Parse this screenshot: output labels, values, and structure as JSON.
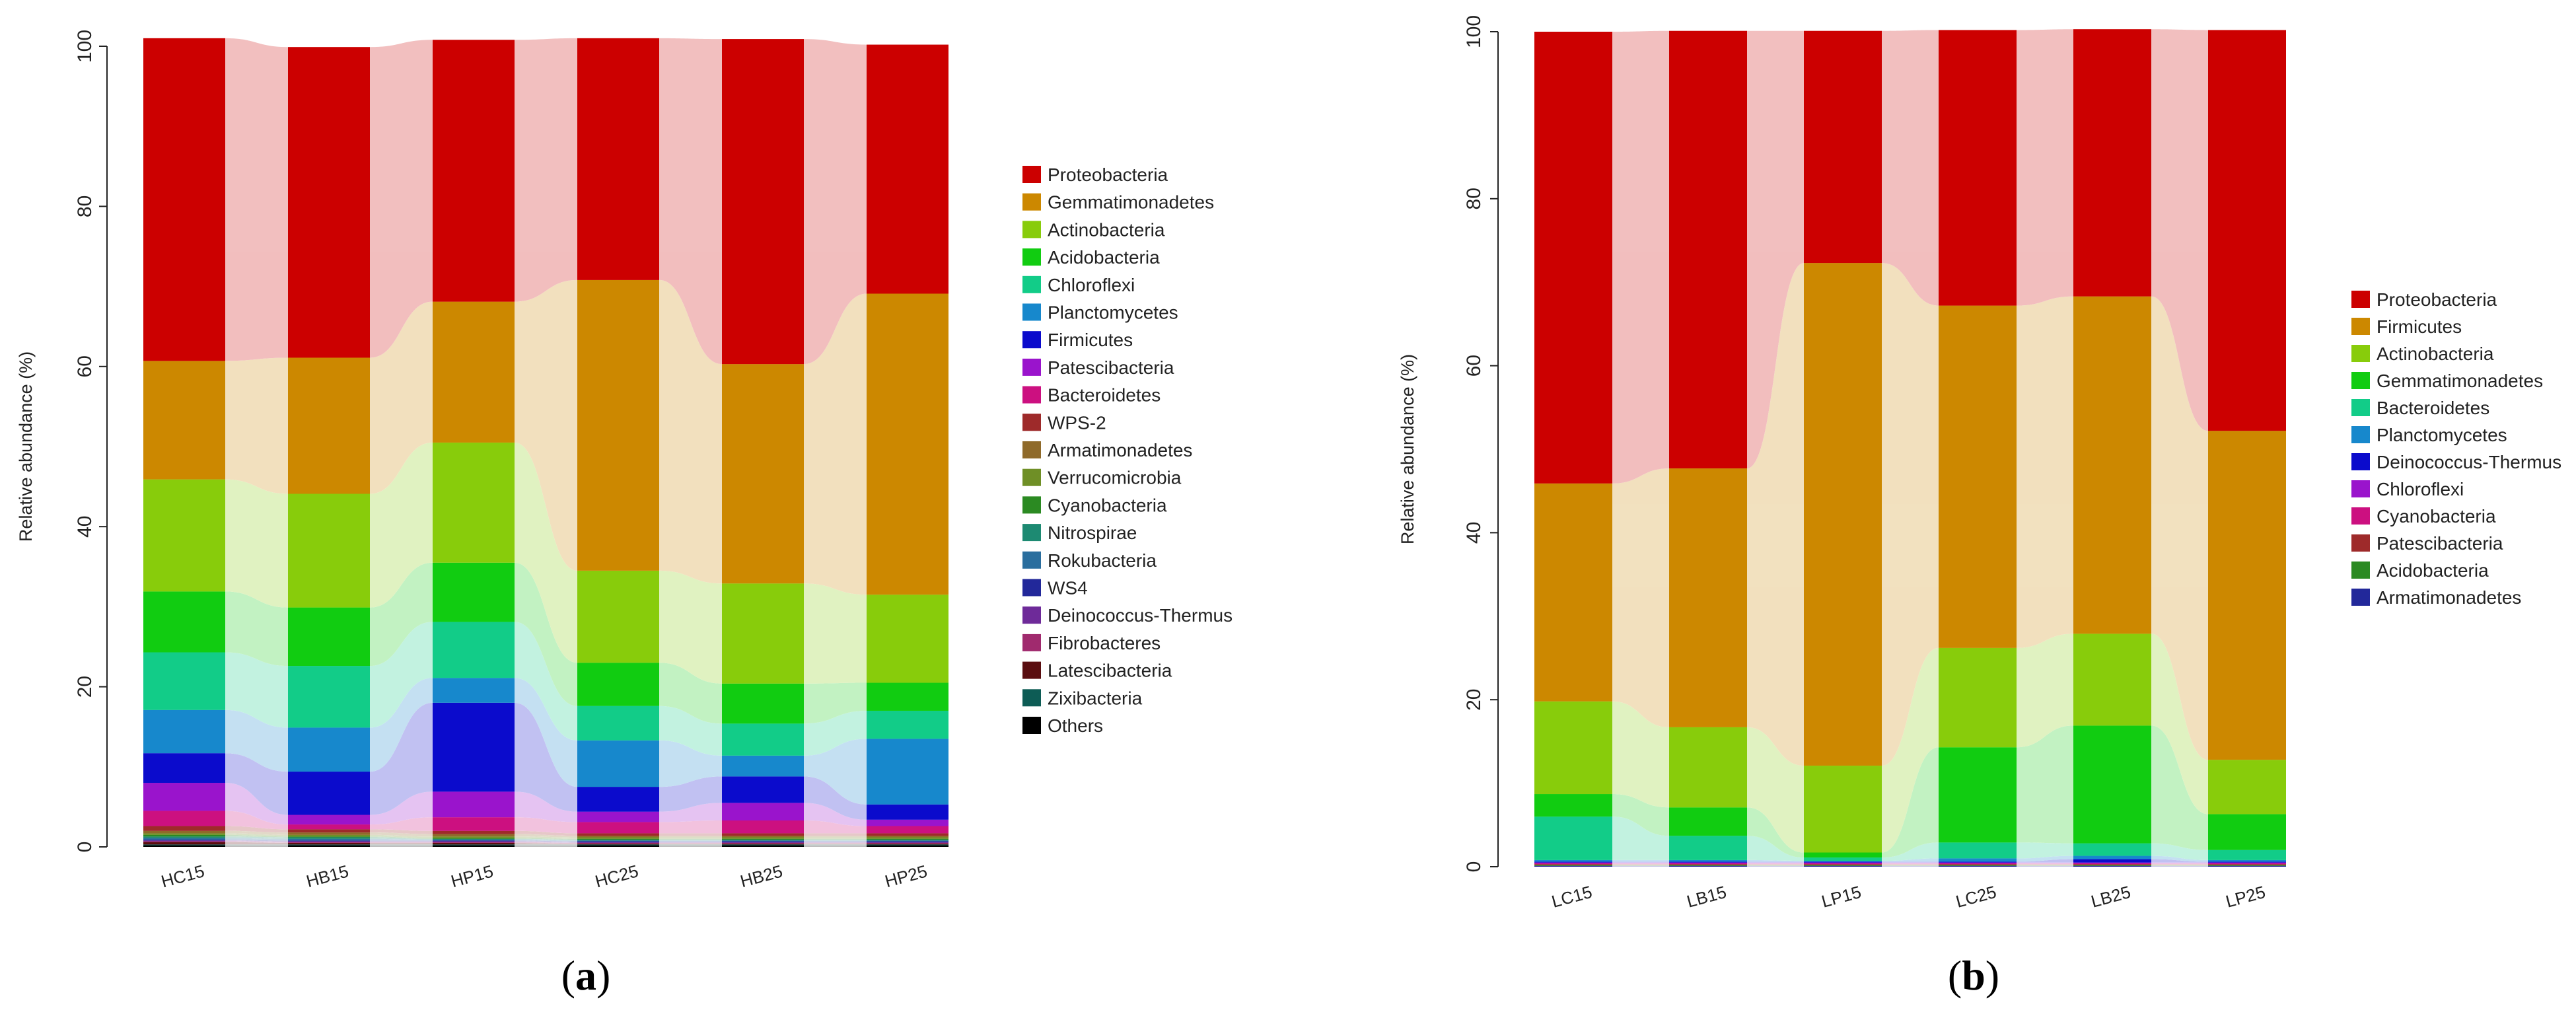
{
  "panels": [
    {
      "label": "(a)",
      "letter": "a"
    },
    {
      "label": "(b)",
      "letter": "b"
    }
  ],
  "chart_data": [
    {
      "type": "bar",
      "stacked": true,
      "ylabel": "Relative abundance (%)",
      "ylim": [
        0,
        100
      ],
      "yticks": [
        0,
        20,
        40,
        60,
        80,
        100
      ],
      "categories": [
        "HC15",
        "HB15",
        "HP15",
        "HC25",
        "HB25",
        "HP25"
      ],
      "legend_position": "right",
      "series": [
        {
          "name": "Others",
          "color": "#000000",
          "values": [
            0.2,
            0.2,
            0.2,
            0.2,
            0.2,
            0.2
          ]
        },
        {
          "name": "Zixibacteria",
          "color": "#0d5c55",
          "values": [
            0.1,
            0.1,
            0.1,
            0.1,
            0.1,
            0.1
          ]
        },
        {
          "name": "Latescibacteria",
          "color": "#5a0e10",
          "values": [
            0.3,
            0.2,
            0.2,
            0.1,
            0.1,
            0.1
          ]
        },
        {
          "name": "Fibrobacteres",
          "color": "#a02a6e",
          "values": [
            0.1,
            0.1,
            0.1,
            0.1,
            0.1,
            0.1
          ]
        },
        {
          "name": "Deinococcus-Thermus",
          "color": "#6e2a99",
          "values": [
            0.1,
            0.1,
            0.1,
            0.1,
            0.1,
            0.1
          ]
        },
        {
          "name": "WS4",
          "color": "#22289a",
          "values": [
            0.1,
            0.1,
            0.1,
            0.1,
            0.1,
            0.1
          ]
        },
        {
          "name": "Rokubacteria",
          "color": "#2a6e9e",
          "values": [
            0.2,
            0.2,
            0.1,
            0.1,
            0.1,
            0.1
          ]
        },
        {
          "name": "Nitrospirae",
          "color": "#1d8a72",
          "values": [
            0.2,
            0.2,
            0.1,
            0.1,
            0.1,
            0.1
          ]
        },
        {
          "name": "Cyanobacteria",
          "color": "#2b8a22",
          "values": [
            0.2,
            0.1,
            0.1,
            0.1,
            0.1,
            0.1
          ]
        },
        {
          "name": "Verrucomicrobia",
          "color": "#6f8f26",
          "values": [
            0.2,
            0.2,
            0.2,
            0.2,
            0.2,
            0.2
          ]
        },
        {
          "name": "Armatimonadetes",
          "color": "#8f6a2a",
          "values": [
            0.3,
            0.3,
            0.3,
            0.2,
            0.2,
            0.2
          ]
        },
        {
          "name": "WPS-2",
          "color": "#9e2a2a",
          "values": [
            0.6,
            0.4,
            0.4,
            0.3,
            0.3,
            0.3
          ]
        },
        {
          "name": "Bacteroidetes",
          "color": "#cc1080",
          "values": [
            1.9,
            0.6,
            1.7,
            1.4,
            1.6,
            0.9
          ]
        },
        {
          "name": "Patescibacteria",
          "color": "#9a14cc",
          "values": [
            3.5,
            1.2,
            3.2,
            1.3,
            2.2,
            0.8
          ]
        },
        {
          "name": "Firmicutes",
          "color": "#0b0bcc",
          "values": [
            3.7,
            5.4,
            11.1,
            3.1,
            3.3,
            1.9
          ]
        },
        {
          "name": "Planctomycetes",
          "color": "#1788cc",
          "values": [
            5.4,
            5.5,
            3.1,
            5.8,
            2.6,
            8.2
          ]
        },
        {
          "name": "Chloroflexi",
          "color": "#12cc88",
          "values": [
            7.2,
            7.7,
            7.0,
            4.3,
            4.0,
            3.5
          ]
        },
        {
          "name": "Acidobacteria",
          "color": "#11cc11",
          "values": [
            7.6,
            7.3,
            7.4,
            5.4,
            5.0,
            3.5
          ]
        },
        {
          "name": "Actinobacteria",
          "color": "#88cc0b",
          "values": [
            14.0,
            14.2,
            15.0,
            11.5,
            12.5,
            11.0
          ]
        },
        {
          "name": "Gemmatimonadetes",
          "color": "#cc8800",
          "values": [
            14.8,
            17.0,
            17.6,
            36.3,
            27.4,
            37.6
          ]
        },
        {
          "name": "Proteobacteria",
          "color": "#cc0000",
          "values": [
            40.3,
            38.8,
            32.7,
            30.2,
            40.6,
            31.1
          ]
        }
      ],
      "legend": [
        "Proteobacteria",
        "Gemmatimonadetes",
        "Actinobacteria",
        "Acidobacteria",
        "Chloroflexi",
        "Planctomycetes",
        "Firmicutes",
        "Patescibacteria",
        "Bacteroidetes",
        "WPS-2",
        "Armatimonadetes",
        "Verrucomicrobia",
        "Cyanobacteria",
        "Nitrospirae",
        "Rokubacteria",
        "WS4",
        "Deinococcus-Thermus",
        "Fibrobacteres",
        "Latescibacteria",
        "Zixibacteria",
        "Others"
      ]
    },
    {
      "type": "bar",
      "stacked": true,
      "ylabel": "Relative abundance (%)",
      "ylim": [
        0,
        100
      ],
      "yticks": [
        0,
        20,
        40,
        60,
        80,
        100
      ],
      "categories": [
        "LC15",
        "LB15",
        "LP15",
        "LC25",
        "LB25",
        "LP25"
      ],
      "legend_position": "right",
      "series": [
        {
          "name": "Armatimonadetes",
          "color": "#22289a",
          "values": [
            0.1,
            0.1,
            0.1,
            0.1,
            0.1,
            0.1
          ]
        },
        {
          "name": "Acidobacteria",
          "color": "#2b8a22",
          "values": [
            0.1,
            0.1,
            0.1,
            0.1,
            0.1,
            0.1
          ]
        },
        {
          "name": "Patescibacteria",
          "color": "#9e2a2a",
          "values": [
            0.1,
            0.1,
            0.1,
            0.1,
            0.1,
            0.1
          ]
        },
        {
          "name": "Cyanobacteria",
          "color": "#cc1080",
          "values": [
            0.1,
            0.1,
            0.1,
            0.1,
            0.1,
            0.1
          ]
        },
        {
          "name": "Chloroflexi",
          "color": "#9a14cc",
          "values": [
            0.1,
            0.1,
            0.1,
            0.1,
            0.1,
            0.1
          ]
        },
        {
          "name": "Deinococcus-Thermus",
          "color": "#0b0bcc",
          "values": [
            0.1,
            0.1,
            0.1,
            0.1,
            0.4,
            0.1
          ]
        },
        {
          "name": "Planctomycetes",
          "color": "#1788cc",
          "values": [
            0.2,
            0.2,
            0.1,
            0.4,
            0.4,
            0.2
          ]
        },
        {
          "name": "Bacteroidetes",
          "color": "#12cc88",
          "values": [
            5.2,
            2.9,
            0.4,
            1.9,
            1.5,
            1.2
          ]
        },
        {
          "name": "Gemmatimonadetes",
          "color": "#11cc11",
          "values": [
            2.7,
            3.4,
            0.6,
            11.4,
            14.1,
            4.3
          ]
        },
        {
          "name": "Actinobacteria",
          "color": "#88cc0b",
          "values": [
            11.1,
            9.6,
            10.4,
            11.9,
            11.0,
            6.5
          ]
        },
        {
          "name": "Firmicutes",
          "color": "#cc8800",
          "values": [
            26.1,
            31.0,
            60.2,
            41.0,
            40.4,
            39.4
          ]
        },
        {
          "name": "Proteobacteria",
          "color": "#cc0000",
          "values": [
            54.1,
            52.4,
            27.8,
            33.0,
            32.0,
            48.0
          ]
        }
      ],
      "legend": [
        "Proteobacteria",
        "Firmicutes",
        "Actinobacteria",
        "Gemmatimonadetes",
        "Bacteroidetes",
        "Planctomycetes",
        "Deinococcus-Thermus",
        "Chloroflexi",
        "Cyanobacteria",
        "Patescibacteria",
        "Acidobacteria",
        "Armatimonadetes"
      ]
    }
  ]
}
